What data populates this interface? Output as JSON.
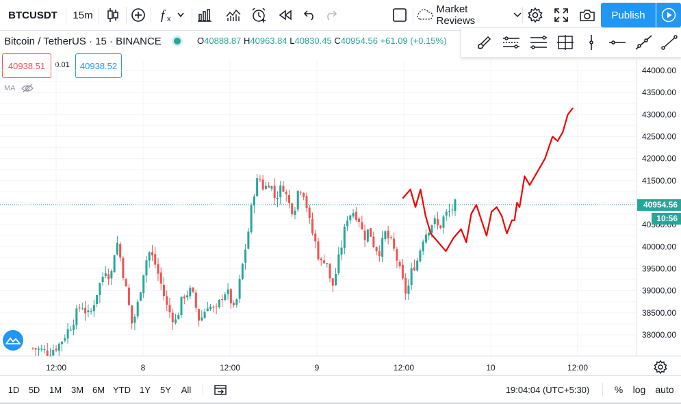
{
  "header": {
    "ticker": "BTCUSDT",
    "interval": "15m",
    "indicators_icon": "fx-icon",
    "layout_name": "Market Reviews",
    "publish_label": "Publish"
  },
  "legend": {
    "symbol": "Bitcoin / TetherUS · 15 · BINANCE",
    "o_label": "O",
    "o_value": "40888.87",
    "h_label": "H",
    "h_value": "40963.84",
    "l_label": "L",
    "l_value": "40830.45",
    "c_label": "C",
    "c_value": "40954.56",
    "change": "+61.09 (+0.15%)"
  },
  "trade": {
    "sell": "40938.51",
    "spread": "0.01",
    "buy": "40938.52"
  },
  "indicator": {
    "label": "MA"
  },
  "chart_data": {
    "type": "candlestick",
    "y_ticks": [
      "44000.00",
      "43500.00",
      "43000.00",
      "42500.00",
      "42000.00",
      "41500.00",
      "41000.00",
      "40500.00",
      "40000.00",
      "39500.00",
      "39000.00",
      "38500.00",
      "38000.00"
    ],
    "x_ticks": [
      "12:00",
      "8",
      "12:00",
      "9",
      "12:00",
      "10",
      "12:00"
    ],
    "last_price": "40954.56",
    "countdown": "10:56",
    "ylim": [
      37500,
      44300
    ],
    "up_color": "#26a69a",
    "down_color": "#ef5350",
    "drawing_color": "#f20000",
    "candles_close_path": [
      [
        0,
        37700
      ],
      [
        6,
        37600
      ],
      [
        10,
        37800
      ],
      [
        14,
        38200
      ],
      [
        18,
        38700
      ],
      [
        21,
        38400
      ],
      [
        24,
        39000
      ],
      [
        27,
        39500
      ],
      [
        29,
        39300
      ],
      [
        31,
        40200
      ],
      [
        33,
        39600
      ],
      [
        35,
        38900
      ],
      [
        37,
        38200
      ],
      [
        39,
        38700
      ],
      [
        41,
        39400
      ],
      [
        43,
        39900
      ],
      [
        45,
        39700
      ],
      [
        47,
        39300
      ],
      [
        50,
        38600
      ],
      [
        53,
        38300
      ],
      [
        56,
        38900
      ],
      [
        59,
        39000
      ],
      [
        62,
        38300
      ],
      [
        65,
        38700
      ],
      [
        68,
        38500
      ],
      [
        71,
        39000
      ],
      [
        73,
        38900
      ],
      [
        75,
        38500
      ],
      [
        78,
        39600
      ],
      [
        80,
        40300
      ],
      [
        82,
        41200
      ],
      [
        84,
        41600
      ],
      [
        86,
        41300
      ],
      [
        88,
        41500
      ],
      [
        90,
        41100
      ],
      [
        93,
        41400
      ],
      [
        95,
        41000
      ],
      [
        97,
        40800
      ],
      [
        99,
        41400
      ],
      [
        101,
        41200
      ],
      [
        103,
        40500
      ],
      [
        105,
        40100
      ],
      [
        107,
        39600
      ],
      [
        109,
        39800
      ],
      [
        111,
        39000
      ],
      [
        113,
        39500
      ],
      [
        115,
        40100
      ],
      [
        117,
        40700
      ],
      [
        119,
        40800
      ],
      [
        121,
        40700
      ],
      [
        123,
        40200
      ],
      [
        125,
        40400
      ],
      [
        127,
        40000
      ],
      [
        129,
        39900
      ],
      [
        131,
        40300
      ],
      [
        133,
        40100
      ],
      [
        135,
        39800
      ],
      [
        137,
        39300
      ],
      [
        139,
        38900
      ],
      [
        141,
        39500
      ],
      [
        143,
        39700
      ],
      [
        145,
        40200
      ],
      [
        147,
        40400
      ],
      [
        149,
        40600
      ],
      [
        151,
        40400
      ],
      [
        153,
        40700
      ],
      [
        155,
        40800
      ],
      [
        157,
        40950
      ]
    ],
    "candles_x_range": [
      0,
      157
    ],
    "drawing_path": [
      [
        157,
        41100
      ],
      [
        160,
        41300
      ],
      [
        162,
        40900
      ],
      [
        164,
        41300
      ],
      [
        166,
        40700
      ],
      [
        168,
        40300
      ],
      [
        171,
        40100
      ],
      [
        174,
        39900
      ],
      [
        177,
        40200
      ],
      [
        180,
        40400
      ],
      [
        182,
        40100
      ],
      [
        184,
        40750
      ],
      [
        186,
        40950
      ],
      [
        188,
        40600
      ],
      [
        190,
        40250
      ],
      [
        192,
        40800
      ],
      [
        194,
        40900
      ],
      [
        196,
        40700
      ],
      [
        198,
        40300
      ],
      [
        200,
        40600
      ],
      [
        201,
        40600
      ],
      [
        202,
        41000
      ],
      [
        203,
        40900
      ],
      [
        205,
        41600
      ],
      [
        207,
        41400
      ],
      [
        210,
        41700
      ],
      [
        213,
        42000
      ],
      [
        216,
        42500
      ],
      [
        218,
        42400
      ],
      [
        220,
        42600
      ],
      [
        222,
        43000
      ],
      [
        224,
        43150
      ]
    ],
    "draw_x_range": [
      0,
      224
    ]
  },
  "timeframes": [
    "1D",
    "5D",
    "1M",
    "3M",
    "6M",
    "YTD",
    "1Y",
    "5Y",
    "All"
  ],
  "footer": {
    "clock": "19:04:04 (UTC+5:30)",
    "percent": "%",
    "log": "log",
    "auto": "auto"
  }
}
